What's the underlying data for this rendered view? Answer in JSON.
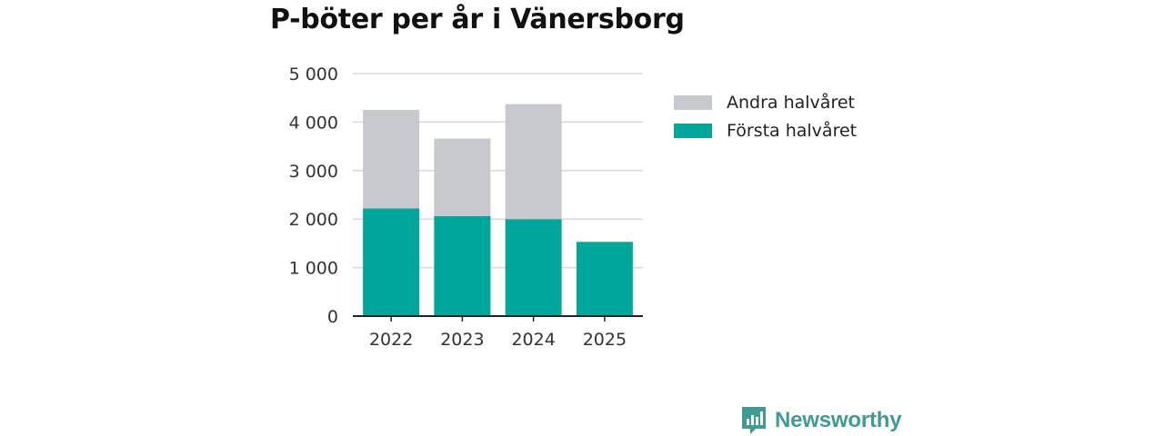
{
  "chart_data": {
    "type": "bar",
    "stacked": true,
    "title": "P-böter per år i Vänersborg",
    "categories": [
      "2022",
      "2023",
      "2024",
      "2025"
    ],
    "series": [
      {
        "name": "Första halvåret",
        "color": "#00a699",
        "values": [
          2220,
          2060,
          2000,
          1530
        ]
      },
      {
        "name": "Andra halvåret",
        "color": "#c8c8cf",
        "values": [
          2030,
          1600,
          2370,
          0
        ]
      }
    ],
    "ylim": [
      0,
      5000
    ],
    "yticks": [
      0,
      1000,
      2000,
      3000,
      4000,
      5000
    ],
    "ytick_labels": [
      "0",
      "1 000",
      "2 000",
      "3 000",
      "4 000",
      "5 000"
    ],
    "xlabel": "",
    "ylabel": "",
    "grid": true,
    "legend": [
      {
        "name": "Andra halvåret",
        "color": "#c8c8cf"
      },
      {
        "name": "Första halvåret",
        "color": "#00a699"
      }
    ],
    "legend_position": "right"
  },
  "brand": {
    "name": "Newsworthy",
    "icon": "newsworthy-logo-icon",
    "color": "#3f9b93"
  }
}
